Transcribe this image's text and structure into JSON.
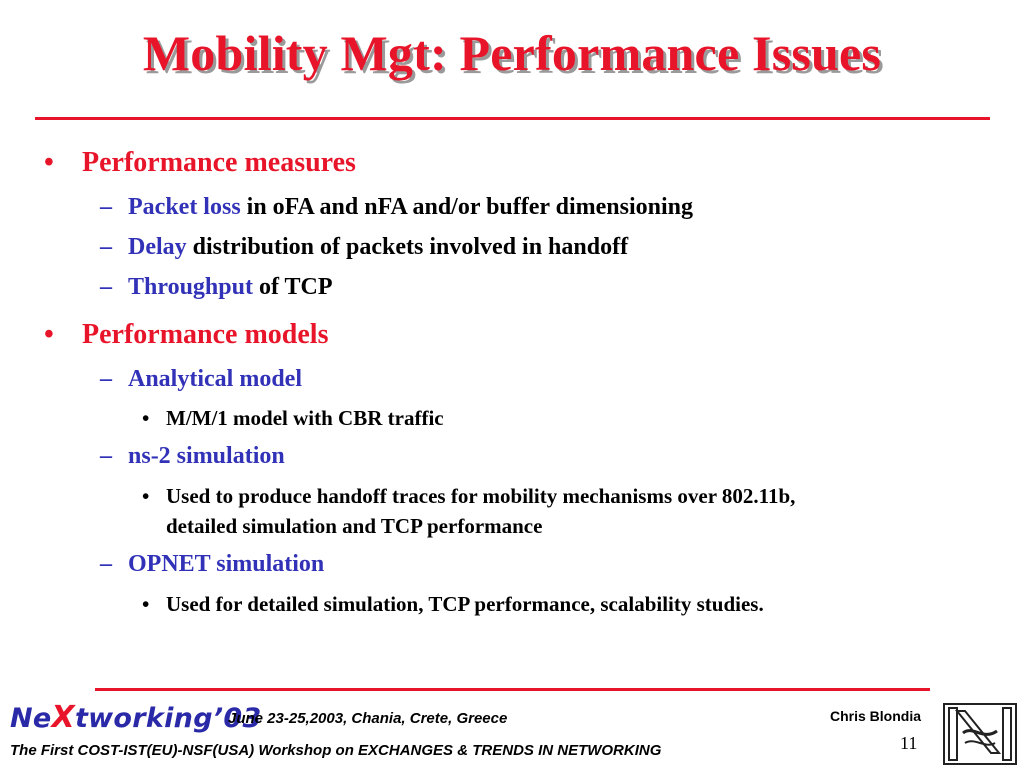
{
  "slide": {
    "title": "Mobility Mgt: Performance Issues",
    "bullet_mark": "•",
    "dash_mark": "–",
    "sections": [
      {
        "heading": "Performance measures",
        "items": [
          {
            "highlight": "Packet loss",
            "rest": " in oFA and nFA and/or buffer dimensioning"
          },
          {
            "highlight": "Delay",
            "rest": " distribution of packets involved in handoff"
          },
          {
            "highlight": "Throughput",
            "rest": " of TCP"
          }
        ]
      },
      {
        "heading": "Performance models",
        "items": [
          {
            "highlight": "Analytical model",
            "subitems": [
              "M/M/1 model with CBR traffic"
            ]
          },
          {
            "highlight": "ns-2 simulation",
            "subitems": [
              "Used to produce handoff traces for mobility mechanisms over 802.11b,",
              "detailed simulation and TCP performance"
            ]
          },
          {
            "highlight": "OPNET simulation",
            "subitems": [
              "Used for detailed simulation, TCP performance, scalability studies."
            ]
          }
        ]
      }
    ]
  },
  "footer": {
    "brand_prefix": "Ne",
    "brand_x": "X",
    "brand_suffix": "tworking’03",
    "date_place": "June 23-25,2003, Chania, Crete, Greece",
    "workshop": "The First COST-IST(EU)-NSF(USA) Workshop on EXCHANGES & TRENDS IN NETWORKING",
    "author": "Chris Blondia",
    "page_number": "11",
    "logo_icon": "university-logo-icon"
  },
  "colors": {
    "title_red": "#e8152a",
    "link_blue": "#3232b8",
    "rule_red": "#e8152a"
  }
}
